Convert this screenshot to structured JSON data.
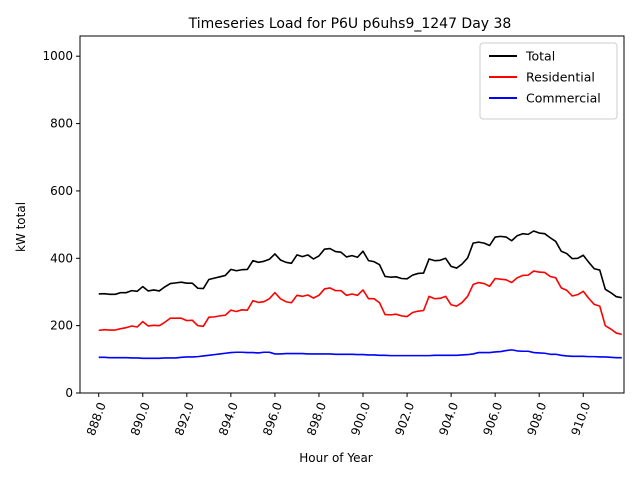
{
  "chart_data": {
    "type": "line",
    "title": "Timeseries Load for P6U p6uhs9_1247  Day 38",
    "xlabel": "Hour of Year",
    "ylabel": "kW total",
    "xlim": [
      887.15,
      911.85
    ],
    "ylim": [
      0,
      1060
    ],
    "x_ticks": [
      888,
      890,
      892,
      894,
      896,
      898,
      900,
      902,
      904,
      906,
      908,
      910
    ],
    "x_tick_labels": [
      "888.0",
      "890.0",
      "892.0",
      "894.0",
      "896.0",
      "898.0",
      "900.0",
      "902.0",
      "904.0",
      "906.0",
      "908.0",
      "910.0"
    ],
    "y_ticks": [
      0,
      200,
      400,
      600,
      800,
      1000
    ],
    "y_tick_labels": [
      "0",
      "200",
      "400",
      "600",
      "800",
      "1000"
    ],
    "legend_position": "top-right",
    "x_start": 888.0,
    "x_step": 0.25,
    "series": [
      {
        "name": "Total",
        "color": "#000000",
        "values": [
          294,
          295,
          293,
          293,
          298,
          298,
          304,
          302,
          316,
          303,
          306,
          303,
          315,
          325,
          327,
          329,
          326,
          326,
          311,
          310,
          337,
          341,
          345,
          349,
          367,
          363,
          366,
          367,
          393,
          388,
          391,
          397,
          413,
          395,
          388,
          385,
          410,
          405,
          410,
          398,
          407,
          427,
          429,
          420,
          418,
          404,
          408,
          403,
          421,
          393,
          390,
          381,
          346,
          344,
          345,
          340,
          339,
          350,
          355,
          356,
          398,
          393,
          394,
          400,
          376,
          371,
          383,
          401,
          445,
          448,
          445,
          438,
          463,
          465,
          463,
          452,
          467,
          473,
          471,
          481,
          475,
          473,
          461,
          450,
          421,
          414,
          399,
          400,
          409,
          388,
          369,
          365,
          308,
          298,
          286,
          283
        ]
      },
      {
        "name": "Residential",
        "color": "#ff0000",
        "values": [
          186,
          188,
          187,
          187,
          191,
          194,
          199,
          196,
          212,
          199,
          201,
          200,
          210,
          222,
          222,
          222,
          215,
          216,
          200,
          198,
          225,
          226,
          229,
          231,
          246,
          242,
          247,
          246,
          274,
          269,
          271,
          280,
          298,
          280,
          271,
          268,
          290,
          287,
          291,
          282,
          290,
          309,
          312,
          304,
          304,
          290,
          294,
          290,
          306,
          280,
          280,
          268,
          233,
          232,
          234,
          229,
          227,
          239,
          243,
          245,
          287,
          280,
          281,
          287,
          262,
          258,
          269,
          287,
          322,
          328,
          325,
          317,
          340,
          338,
          336,
          328,
          342,
          349,
          350,
          362,
          359,
          358,
          346,
          342,
          312,
          305,
          288,
          292,
          302,
          281,
          263,
          258,
          200,
          190,
          178,
          174
        ]
      },
      {
        "name": "Commercial",
        "color": "#0000ff",
        "values": [
          106,
          106,
          105,
          105,
          105,
          105,
          104,
          104,
          103,
          103,
          103,
          103,
          104,
          104,
          104,
          106,
          107,
          107,
          108,
          110,
          112,
          114,
          116,
          118,
          120,
          121,
          121,
          120,
          120,
          119,
          121,
          121,
          116,
          116,
          117,
          117,
          117,
          117,
          116,
          116,
          116,
          116,
          116,
          115,
          115,
          115,
          115,
          114,
          114,
          113,
          113,
          112,
          112,
          111,
          111,
          111,
          111,
          111,
          111,
          111,
          111,
          112,
          112,
          112,
          112,
          112,
          113,
          114,
          116,
          120,
          120,
          120,
          122,
          123,
          126,
          128,
          125,
          124,
          124,
          120,
          119,
          118,
          115,
          115,
          112,
          110,
          109,
          109,
          109,
          108,
          108,
          107,
          107,
          106,
          105,
          105
        ]
      }
    ]
  }
}
